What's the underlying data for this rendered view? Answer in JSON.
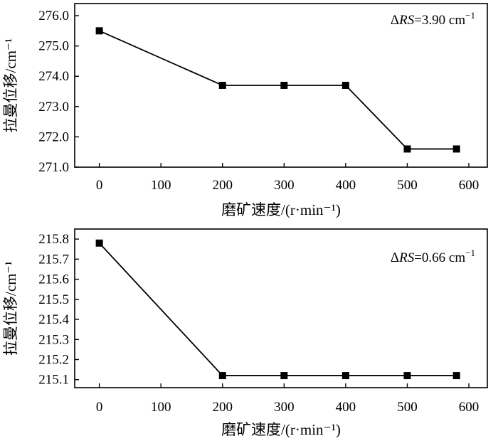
{
  "chart_data": [
    {
      "type": "line",
      "x": [
        0,
        200,
        300,
        400,
        500,
        580
      ],
      "series": [
        {
          "values": [
            275.5,
            273.7,
            273.7,
            273.7,
            271.6,
            271.6
          ],
          "color": "#000000",
          "marker": "square"
        }
      ],
      "xlabel": "磨矿速度/(r·min⁻¹)",
      "ylabel": "拉曼位移/cm⁻¹",
      "xlim": [
        -40,
        630
      ],
      "ylim": [
        271.0,
        276.4
      ],
      "xticks": [
        0,
        100,
        200,
        300,
        400,
        500,
        600
      ],
      "yticks": [
        271.0,
        272.0,
        273.0,
        274.0,
        275.0,
        276.0
      ],
      "ytick_labels": [
        "271.0",
        "272.0",
        "273.0",
        "274.0",
        "275.0",
        "276.0"
      ],
      "annotation": {
        "prefix": "Δ",
        "label": "RS",
        "value": "=3.90 cm",
        "sup": "−1"
      },
      "grid": false
    },
    {
      "type": "line",
      "x": [
        0,
        200,
        300,
        400,
        500,
        580
      ],
      "series": [
        {
          "values": [
            215.78,
            215.12,
            215.12,
            215.12,
            215.12,
            215.12
          ],
          "color": "#000000",
          "marker": "square"
        }
      ],
      "xlabel": "磨矿速度/(r·min⁻¹)",
      "ylabel": "拉曼位移/cm⁻¹",
      "xlim": [
        -40,
        630
      ],
      "ylim": [
        215.06,
        215.85
      ],
      "xticks": [
        0,
        100,
        200,
        300,
        400,
        500,
        600
      ],
      "yticks": [
        215.1,
        215.2,
        215.3,
        215.4,
        215.5,
        215.6,
        215.7,
        215.8
      ],
      "ytick_labels": [
        "215.1",
        "215.2",
        "215.3",
        "215.4",
        "215.5",
        "215.6",
        "215.7",
        "215.8"
      ],
      "annotation": {
        "prefix": "Δ",
        "label": "RS",
        "value": "=0.66 cm",
        "sup": "−1"
      },
      "grid": false
    }
  ]
}
